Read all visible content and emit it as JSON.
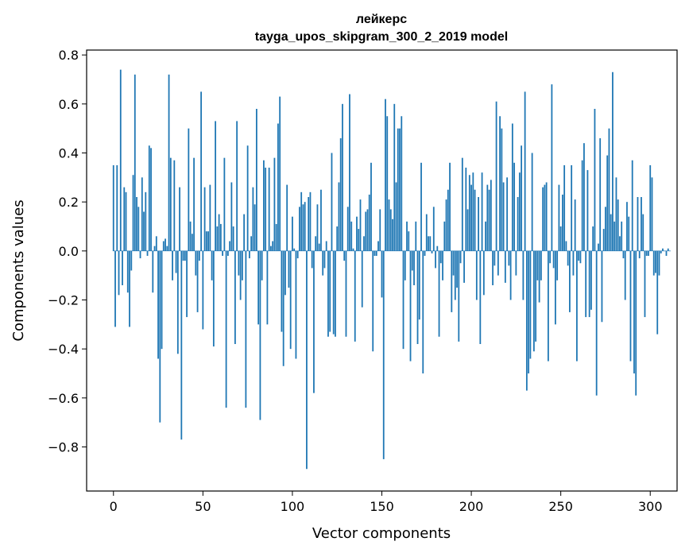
{
  "chart_data": {
    "type": "bar",
    "title": "лейкерс",
    "subtitle": "tayga_upos_skipgram_300_2_2019 model",
    "xlabel": "Vector components",
    "ylabel": "Components values",
    "xlim": [
      -15,
      315
    ],
    "ylim": [
      -0.98,
      0.82
    ],
    "xticks": [
      0,
      50,
      100,
      150,
      200,
      250,
      300
    ],
    "xtick_labels": [
      "0",
      "50",
      "100",
      "150",
      "200",
      "250",
      "300"
    ],
    "yticks": [
      0.8,
      0.6,
      0.4,
      0.2,
      0.0,
      -0.2,
      -0.4,
      -0.6,
      -0.8
    ],
    "ytick_labels": [
      "0.8",
      "0.6",
      "0.4",
      "0.2",
      "0.0",
      "−0.2",
      "−0.4",
      "−0.6",
      "−0.8"
    ],
    "grid": false,
    "bar_color": "#1f77b4",
    "series": [
      {
        "values": [
          0.35,
          -0.31,
          0.35,
          -0.18,
          0.74,
          -0.14,
          0.26,
          0.24,
          -0.17,
          -0.31,
          -0.08,
          0.31,
          0.72,
          0.22,
          0.18,
          -0.03,
          0.3,
          0.16,
          0.24,
          -0.02,
          0.43,
          0.42,
          -0.17,
          0.02,
          0.06,
          -0.44,
          -0.7,
          -0.4,
          0.04,
          0.05,
          0.02,
          0.72,
          0.38,
          -0.12,
          0.37,
          -0.09,
          -0.42,
          0.26,
          -0.77,
          -0.04,
          -0.04,
          -0.27,
          0.5,
          0.12,
          0.07,
          0.38,
          -0.1,
          -0.25,
          -0.04,
          0.65,
          -0.32,
          0.26,
          0.08,
          0.08,
          0.27,
          -0.12,
          -0.39,
          0.53,
          0.1,
          0.15,
          0.11,
          -0.02,
          0.38,
          -0.64,
          -0.02,
          0.04,
          0.28,
          0.1,
          -0.38,
          0.53,
          -0.1,
          -0.2,
          -0.12,
          0.15,
          -0.64,
          0.43,
          -0.03,
          0.06,
          0.26,
          0.19,
          0.58,
          -0.3,
          -0.69,
          -0.12,
          0.37,
          0.34,
          -0.3,
          0.34,
          0.02,
          0.04,
          0.38,
          0.11,
          0.52,
          0.63,
          -0.33,
          -0.47,
          -0.18,
          0.27,
          -0.15,
          -0.4,
          0.14,
          0.01,
          -0.44,
          -0.03,
          0.18,
          0.24,
          0.19,
          0.2,
          -0.89,
          0.22,
          0.24,
          -0.07,
          -0.58,
          0.06,
          0.19,
          0.03,
          0.25,
          -0.1,
          -0.07,
          0.04,
          -0.35,
          -0.33,
          0.4,
          -0.34,
          -0.35,
          0.1,
          0.28,
          0.46,
          0.6,
          -0.04,
          -0.35,
          0.18,
          0.64,
          0.12,
          0.01,
          -0.37,
          0.14,
          0.09,
          0.21,
          -0.23,
          0.06,
          0.16,
          0.17,
          0.23,
          0.36,
          -0.41,
          -0.02,
          -0.02,
          0.04,
          0.17,
          -0.19,
          -0.85,
          0.62,
          0.55,
          0.21,
          0.17,
          0.13,
          0.6,
          0.28,
          0.5,
          0.5,
          0.55,
          -0.4,
          -0.12,
          0.12,
          0.08,
          -0.45,
          -0.08,
          -0.14,
          0.12,
          -0.38,
          -0.28,
          0.36,
          -0.5,
          -0.02,
          0.15,
          0.06,
          0.06,
          -0.01,
          0.18,
          -0.07,
          0.02,
          -0.35,
          -0.05,
          -0.12,
          0.12,
          0.21,
          0.25,
          0.36,
          -0.25,
          -0.1,
          -0.2,
          -0.15,
          -0.37,
          -0.05,
          0.38,
          -0.13,
          0.34,
          0.17,
          0.31,
          0.27,
          0.32,
          0.25,
          -0.2,
          0.22,
          -0.38,
          0.32,
          -0.18,
          0.12,
          0.27,
          0.25,
          0.29,
          -0.14,
          -0.06,
          0.61,
          -0.1,
          0.55,
          0.5,
          0.28,
          -0.13,
          0.3,
          -0.06,
          -0.2,
          0.52,
          0.36,
          -0.1,
          0.22,
          0.32,
          0.43,
          -0.2,
          0.65,
          -0.57,
          -0.5,
          -0.44,
          0.4,
          -0.41,
          -0.37,
          -0.12,
          -0.21,
          -0.12,
          0.26,
          0.27,
          0.28,
          -0.45,
          -0.05,
          0.68,
          -0.07,
          -0.3,
          -0.12,
          0.27,
          0.1,
          0.23,
          0.35,
          0.04,
          -0.06,
          -0.25,
          0.35,
          -0.1,
          0.21,
          -0.45,
          -0.04,
          -0.05,
          0.37,
          0.44,
          -0.27,
          0.33,
          -0.27,
          -0.24,
          0.1,
          0.58,
          -0.59,
          0.03,
          0.46,
          -0.29,
          0.09,
          0.18,
          0.39,
          0.5,
          0.15,
          0.73,
          0.12,
          0.3,
          0.21,
          0.06,
          0.12,
          -0.03,
          -0.2,
          0.2,
          0.14,
          -0.45,
          0.37,
          -0.5,
          -0.59,
          0.22,
          -0.03,
          0.22,
          0.15,
          -0.27,
          -0.02,
          -0.02,
          0.35,
          0.3,
          -0.1,
          -0.09,
          -0.34,
          -0.1,
          -0.01,
          0.01,
          0.0,
          -0.02,
          0.01,
          0.0
        ]
      }
    ]
  }
}
